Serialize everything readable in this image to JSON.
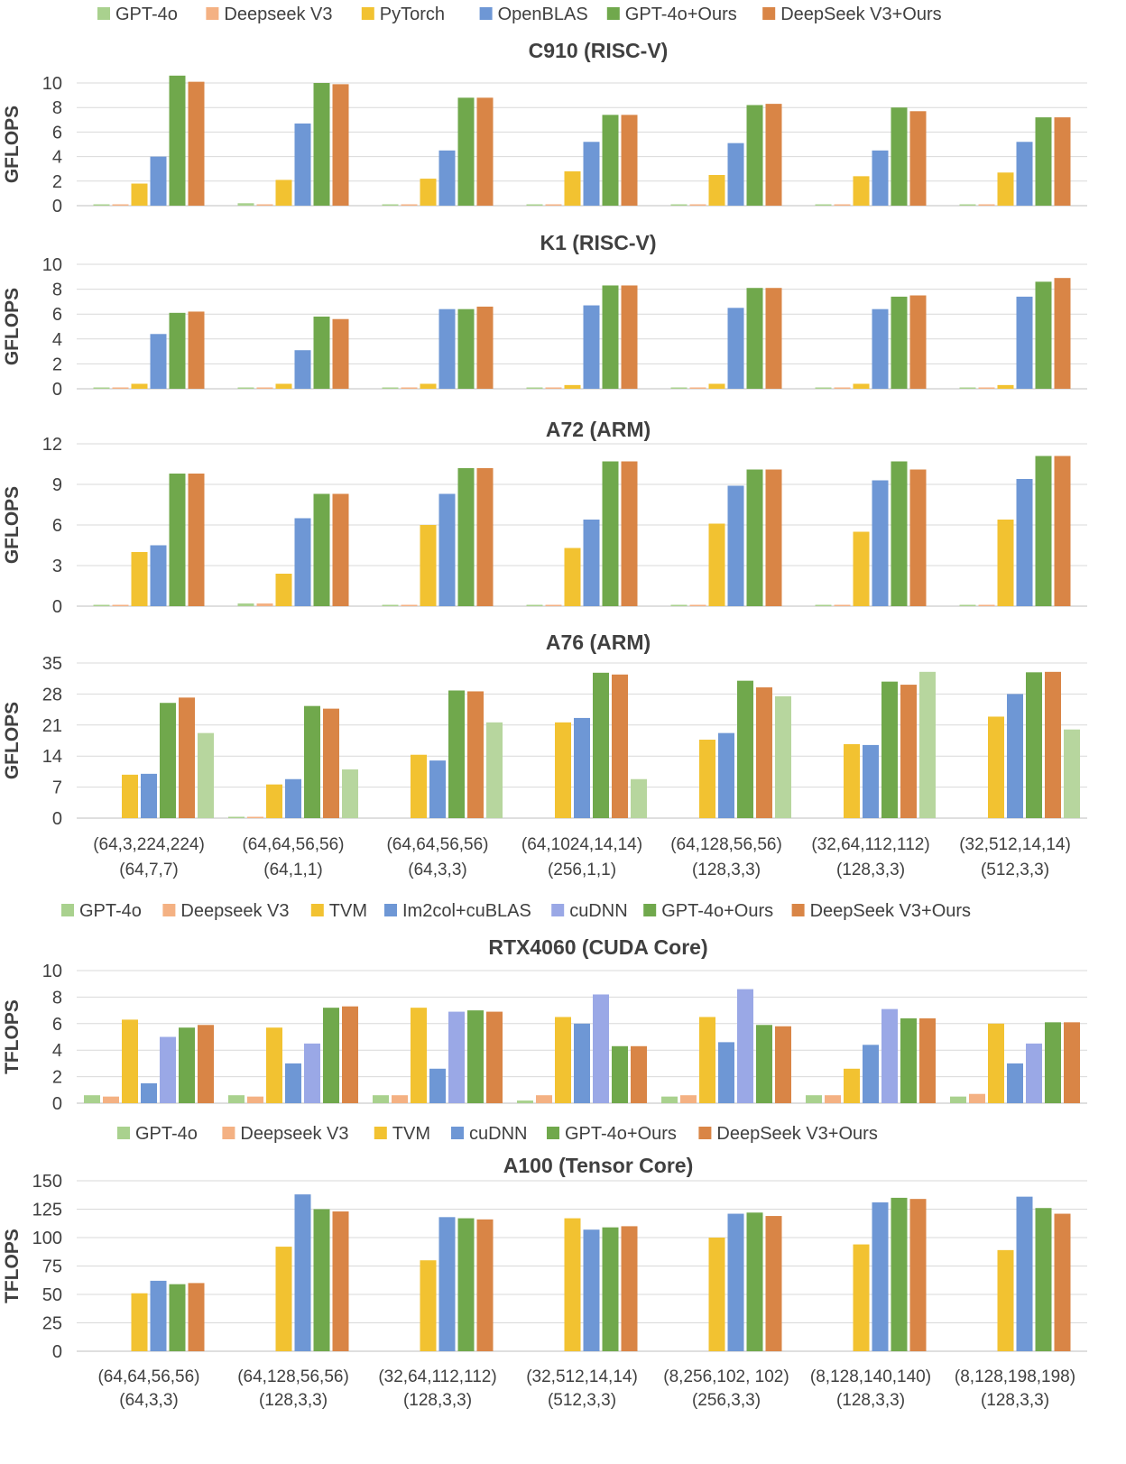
{
  "colors": {
    "GPT-4o": "#a9d18e",
    "Deepseek V3": "#f4b183",
    "PyTorch": "#f2c231",
    "OpenBLAS": "#6e97d5",
    "TVM": "#f2c231",
    "Im2col+cuBLAS": "#6e97d5",
    "cuDNN_rtx": "#9aa8e6",
    "cuDNN": "#6e97d5",
    "GPT-4o+Ours": "#70a84c",
    "DeepSeek V3+Ours": "#d98546"
  },
  "legends": [
    {
      "items": [
        "GPT-4o",
        "Deepseek V3",
        "PyTorch",
        "OpenBLAS",
        "GPT-4o+Ours",
        "DeepSeek V3+Ours"
      ],
      "colors": [
        "#a9d18e",
        "#f4b183",
        "#f2c231",
        "#6e97d5",
        "#70a84c",
        "#d98546"
      ]
    },
    {
      "items": [
        "GPT-4o",
        "Deepseek V3",
        "TVM",
        "Im2col+cuBLAS",
        "cuDNN",
        "GPT-4o+Ours",
        "DeepSeek V3+Ours"
      ],
      "colors": [
        "#a9d18e",
        "#f4b183",
        "#f2c231",
        "#6e97d5",
        "#9aa8e6",
        "#70a84c",
        "#d98546"
      ]
    },
    {
      "items": [
        "GPT-4o",
        "Deepseek V3",
        "TVM",
        "cuDNN",
        "GPT-4o+Ours",
        "DeepSeek V3+Ours"
      ],
      "colors": [
        "#a9d18e",
        "#f4b183",
        "#f2c231",
        "#6e97d5",
        "#70a84c",
        "#d98546"
      ]
    }
  ],
  "category_labels_cpu": [
    [
      "(64,3,224,224)",
      "(64,7,7)"
    ],
    [
      "(64,64,56,56)",
      "(64,1,1)"
    ],
    [
      "(64,64,56,56)",
      "(64,3,3)"
    ],
    [
      "(64,1024,14,14)",
      "(256,1,1)"
    ],
    [
      "(64,128,56,56)",
      "(128,3,3)"
    ],
    [
      "(32,64,112,112)",
      "(128,3,3)"
    ],
    [
      "(32,512,14,14)",
      "(512,3,3)"
    ]
  ],
  "category_labels_gpu": [
    [
      "(64,64,56,56)",
      "(64,3,3)"
    ],
    [
      "(64,128,56,56)",
      "(128,3,3)"
    ],
    [
      "(32,64,112,112)",
      "(128,3,3)"
    ],
    [
      "(32,512,14,14)",
      "(512,3,3)"
    ],
    [
      "(8,256,102, 102)",
      "(256,3,3)"
    ],
    [
      "(8,128,140,140)",
      "(128,3,3)"
    ],
    [
      "(8,128,198,198)",
      "(128,3,3)"
    ]
  ],
  "chart_data": [
    {
      "type": "bar",
      "title": "C910 (RISC-V)",
      "ylabel": "GFLOPS",
      "ylim": [
        0,
        10
      ],
      "yticks": [
        0,
        2,
        4,
        6,
        8,
        10
      ],
      "legend_placement": "top",
      "series": [
        {
          "name": "GPT-4o",
          "values": [
            0.1,
            0.2,
            0.05,
            0.1,
            0.05,
            0.05,
            0.05
          ]
        },
        {
          "name": "Deepseek V3",
          "values": [
            0.1,
            0.05,
            0.05,
            0.1,
            0.05,
            0.05,
            0.05
          ]
        },
        {
          "name": "PyTorch",
          "values": [
            1.8,
            2.1,
            2.2,
            2.8,
            2.5,
            2.4,
            2.7
          ]
        },
        {
          "name": "OpenBLAS",
          "values": [
            4.0,
            6.7,
            4.5,
            5.2,
            5.1,
            4.5,
            5.2
          ]
        },
        {
          "name": "GPT-4o+Ours",
          "values": [
            10.6,
            10.0,
            8.8,
            7.4,
            8.2,
            8.0,
            7.2
          ]
        },
        {
          "name": "DeepSeek V3+Ours",
          "values": [
            10.1,
            9.9,
            8.8,
            7.4,
            8.3,
            7.7,
            7.2
          ]
        }
      ]
    },
    {
      "type": "bar",
      "title": "K1 (RISC-V)",
      "ylabel": "GFLOPS",
      "ylim": [
        0,
        10
      ],
      "yticks": [
        0,
        2,
        4,
        6,
        8,
        10
      ],
      "series": [
        {
          "name": "GPT-4o",
          "values": [
            0.05,
            0.05,
            0.05,
            0.05,
            0.05,
            0.05,
            0.05
          ]
        },
        {
          "name": "Deepseek V3",
          "values": [
            0.05,
            0.05,
            0.05,
            0.05,
            0.05,
            0.05,
            0.05
          ]
        },
        {
          "name": "PyTorch",
          "values": [
            0.4,
            0.4,
            0.4,
            0.3,
            0.4,
            0.4,
            0.3
          ]
        },
        {
          "name": "OpenBLAS",
          "values": [
            4.4,
            3.1,
            6.4,
            6.7,
            6.5,
            6.4,
            7.4
          ]
        },
        {
          "name": "GPT-4o+Ours",
          "values": [
            6.1,
            5.8,
            6.4,
            8.3,
            8.1,
            7.4,
            8.6
          ]
        },
        {
          "name": "DeepSeek V3+Ours",
          "values": [
            6.2,
            5.6,
            6.6,
            8.3,
            8.1,
            7.5,
            8.9
          ]
        }
      ]
    },
    {
      "type": "bar",
      "title": "A72 (ARM)",
      "ylabel": "GFLOPS",
      "ylim": [
        0,
        12
      ],
      "yticks": [
        0,
        3,
        6,
        9,
        12
      ],
      "series": [
        {
          "name": "GPT-4o",
          "values": [
            0.1,
            0.2,
            0.05,
            0.1,
            0.05,
            0.05,
            0.05
          ]
        },
        {
          "name": "Deepseek V3",
          "values": [
            0.1,
            0.2,
            0.05,
            0.1,
            0.05,
            0.05,
            0.05
          ]
        },
        {
          "name": "PyTorch",
          "values": [
            4.0,
            2.4,
            6.0,
            4.3,
            6.1,
            5.5,
            6.4
          ]
        },
        {
          "name": "OpenBLAS",
          "values": [
            4.5,
            6.5,
            8.3,
            6.4,
            8.9,
            9.3,
            9.4
          ]
        },
        {
          "name": "GPT-4o+Ours",
          "values": [
            9.8,
            8.3,
            10.2,
            10.7,
            10.1,
            10.7,
            11.1
          ]
        },
        {
          "name": "DeepSeek V3+Ours",
          "values": [
            9.8,
            8.3,
            10.2,
            10.7,
            10.1,
            10.1,
            11.1
          ]
        }
      ]
    },
    {
      "type": "bar",
      "title": "A76 (ARM)",
      "ylabel": "GFLOPS",
      "ylim": [
        0,
        35
      ],
      "yticks": [
        0,
        7,
        14,
        21,
        28,
        35
      ],
      "series": [
        {
          "name": "GPT-4o",
          "values": [
            0,
            0.3,
            0,
            0,
            0,
            0,
            0
          ]
        },
        {
          "name": "Deepseek V3",
          "values": [
            0,
            0.3,
            0,
            0,
            0,
            0,
            0
          ]
        },
        {
          "name": "PyTorch",
          "values": [
            9.8,
            7.6,
            14.3,
            21.6,
            17.7,
            16.7,
            22.9
          ]
        },
        {
          "name": "OpenBLAS",
          "values": [
            10.0,
            8.8,
            13.0,
            22.6,
            19.2,
            16.5,
            28.0
          ]
        },
        {
          "name": "GPT-4o+Ours",
          "values": [
            26.0,
            25.3,
            28.8,
            32.8,
            31.0,
            30.8,
            32.9
          ]
        },
        {
          "name": "DeepSeek V3+Ours",
          "values": [
            27.2,
            24.7,
            28.6,
            32.4,
            29.5,
            30.1,
            33.0
          ]
        },
        {
          "name": "",
          "values": [
            19.2,
            11.0,
            21.6,
            8.8,
            27.5,
            33.0,
            20.0
          ]
        }
      ]
    },
    {
      "type": "bar",
      "title": "RTX4060 (CUDA Core)",
      "ylabel": "TFLOPS",
      "ylim": [
        0,
        10
      ],
      "yticks": [
        0,
        2,
        4,
        6,
        8,
        10
      ],
      "series": [
        {
          "name": "GPT-4o",
          "values": [
            0.6,
            0.6,
            0.6,
            0.2,
            0.5,
            0.6,
            0.5
          ]
        },
        {
          "name": "Deepseek V3",
          "values": [
            0.5,
            0.5,
            0.6,
            0.6,
            0.6,
            0.6,
            0.7
          ]
        },
        {
          "name": "TVM",
          "values": [
            6.3,
            5.7,
            7.2,
            6.5,
            6.5,
            2.6,
            6.0
          ]
        },
        {
          "name": "Im2col+cuBLAS",
          "values": [
            1.5,
            3.0,
            2.6,
            6.0,
            4.6,
            4.4,
            3.0
          ]
        },
        {
          "name": "cuDNN",
          "values": [
            5.0,
            4.5,
            6.9,
            8.2,
            8.6,
            7.1,
            4.5
          ]
        },
        {
          "name": "GPT-4o+Ours",
          "values": [
            5.7,
            7.2,
            7.0,
            4.3,
            5.9,
            6.4,
            6.1
          ]
        },
        {
          "name": "DeepSeek V3+Ours",
          "values": [
            5.9,
            7.3,
            6.9,
            4.3,
            5.8,
            6.4,
            6.1
          ]
        }
      ]
    },
    {
      "type": "bar",
      "title": "A100 (Tensor Core)",
      "ylabel": "TFLOPS",
      "ylim": [
        0,
        150
      ],
      "yticks": [
        0,
        25,
        50,
        75,
        100,
        125,
        150
      ],
      "series": [
        {
          "name": "GPT-4o",
          "values": [
            0,
            0,
            0,
            0,
            0,
            0,
            0
          ]
        },
        {
          "name": "Deepseek V3",
          "values": [
            0,
            0,
            0,
            0,
            0,
            0,
            0
          ]
        },
        {
          "name": "TVM",
          "values": [
            51,
            92,
            80,
            117,
            100,
            94,
            89
          ]
        },
        {
          "name": "cuDNN",
          "values": [
            62,
            138,
            118,
            107,
            121,
            131,
            136
          ]
        },
        {
          "name": "GPT-4o+Ours",
          "values": [
            59,
            125,
            117,
            109,
            122,
            135,
            126
          ]
        },
        {
          "name": "DeepSeek V3+Ours",
          "values": [
            60,
            123,
            116,
            110,
            119,
            134,
            121
          ]
        }
      ]
    }
  ]
}
